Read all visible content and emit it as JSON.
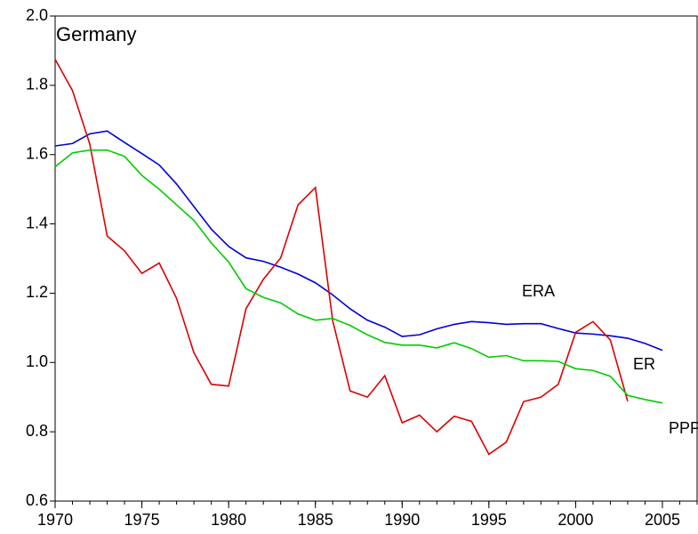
{
  "chart_data": {
    "type": "line",
    "title": "Germany",
    "x": [
      1970,
      1971,
      1972,
      1973,
      1974,
      1975,
      1976,
      1977,
      1978,
      1979,
      1980,
      1981,
      1982,
      1983,
      1984,
      1985,
      1986,
      1987,
      1988,
      1989,
      1990,
      1991,
      1992,
      1993,
      1994,
      1995,
      1996,
      1997,
      1998,
      1999,
      2000,
      2001,
      2002,
      2003,
      2004,
      2005
    ],
    "series": [
      {
        "name": "ERA",
        "color": "#0000dd",
        "values": [
          1.625,
          1.632,
          1.66,
          1.668,
          1.635,
          1.603,
          1.57,
          1.515,
          1.45,
          1.385,
          1.335,
          1.302,
          1.292,
          1.275,
          1.255,
          1.23,
          1.195,
          1.155,
          1.122,
          1.102,
          1.075,
          1.08,
          1.097,
          1.11,
          1.118,
          1.115,
          1.11,
          1.112,
          1.112,
          1.098,
          1.085,
          1.082,
          1.077,
          1.07,
          1.055,
          1.035
        ]
      },
      {
        "name": "ER",
        "color": "#dd0000",
        "values": [
          1.875,
          1.785,
          1.63,
          1.365,
          1.322,
          1.257,
          1.287,
          1.185,
          1.028,
          0.937,
          0.932,
          1.155,
          1.24,
          1.302,
          1.455,
          1.505,
          1.12,
          0.918,
          0.9,
          0.962,
          0.826,
          0.848,
          0.8,
          0.845,
          0.83,
          0.735,
          0.77,
          0.887,
          0.9,
          0.937,
          1.087,
          1.118,
          1.065,
          0.888,
          null,
          null
        ]
      },
      {
        "name": "PPP",
        "color": "#00cc00",
        "values": [
          1.565,
          1.605,
          1.613,
          1.613,
          1.595,
          1.54,
          1.5,
          1.455,
          1.41,
          1.345,
          1.29,
          1.213,
          1.188,
          1.172,
          1.14,
          1.122,
          1.127,
          1.107,
          1.08,
          1.058,
          1.05,
          1.05,
          1.042,
          1.057,
          1.04,
          1.015,
          1.02,
          1.005,
          1.005,
          1.003,
          0.982,
          0.977,
          0.96,
          0.905,
          0.893,
          0.883
        ]
      }
    ],
    "xlim": [
      1970,
      2007
    ],
    "xticks": [
      1970,
      1975,
      1980,
      1985,
      1990,
      1995,
      2000,
      2005
    ],
    "ylim": [
      0.6,
      2.0
    ],
    "yticks": [
      0.6,
      0.8,
      {
        "value": 1,
        "label": "1.0"
      },
      1.2,
      1.4,
      1.6,
      1.8,
      {
        "value": 2,
        "label": "2.0"
      }
    ]
  }
}
